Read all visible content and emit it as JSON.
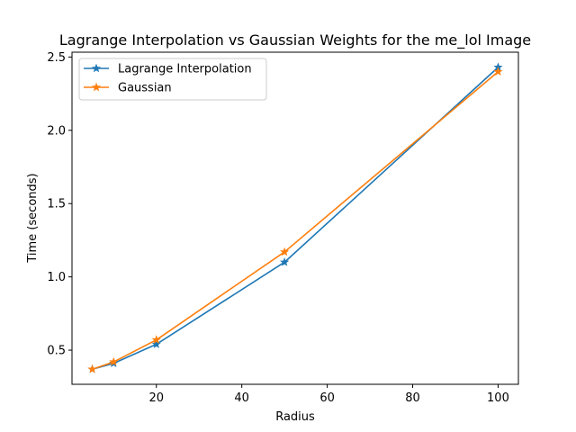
{
  "chart_data": {
    "type": "line",
    "title": "Lagrange Interpolation vs Gaussian Weights for the me_lol Image",
    "xlabel": "Radius",
    "ylabel": "Time (seconds)",
    "x": [
      5,
      10,
      20,
      50,
      100
    ],
    "series": [
      {
        "name": "Lagrange Interpolation",
        "values": [
          0.37,
          0.41,
          0.54,
          1.1,
          2.43
        ],
        "color": "#1f77b4",
        "marker": "star"
      },
      {
        "name": "Gaussian",
        "values": [
          0.37,
          0.42,
          0.57,
          1.17,
          2.4
        ],
        "color": "#ff7f0e",
        "marker": "star"
      }
    ],
    "xlim": [
      0.25,
      104.75
    ],
    "ylim": [
      0.267,
      2.533
    ],
    "xticks": [
      20,
      40,
      60,
      80,
      100
    ],
    "xtick_labels": [
      "20",
      "40",
      "60",
      "80",
      "100"
    ],
    "yticks": [
      0.5,
      1.0,
      1.5,
      2.0,
      2.5
    ],
    "ytick_labels": [
      "0.5",
      "1.0",
      "1.5",
      "2.0",
      "2.5"
    ],
    "grid": false,
    "legend_position": "top-left"
  }
}
